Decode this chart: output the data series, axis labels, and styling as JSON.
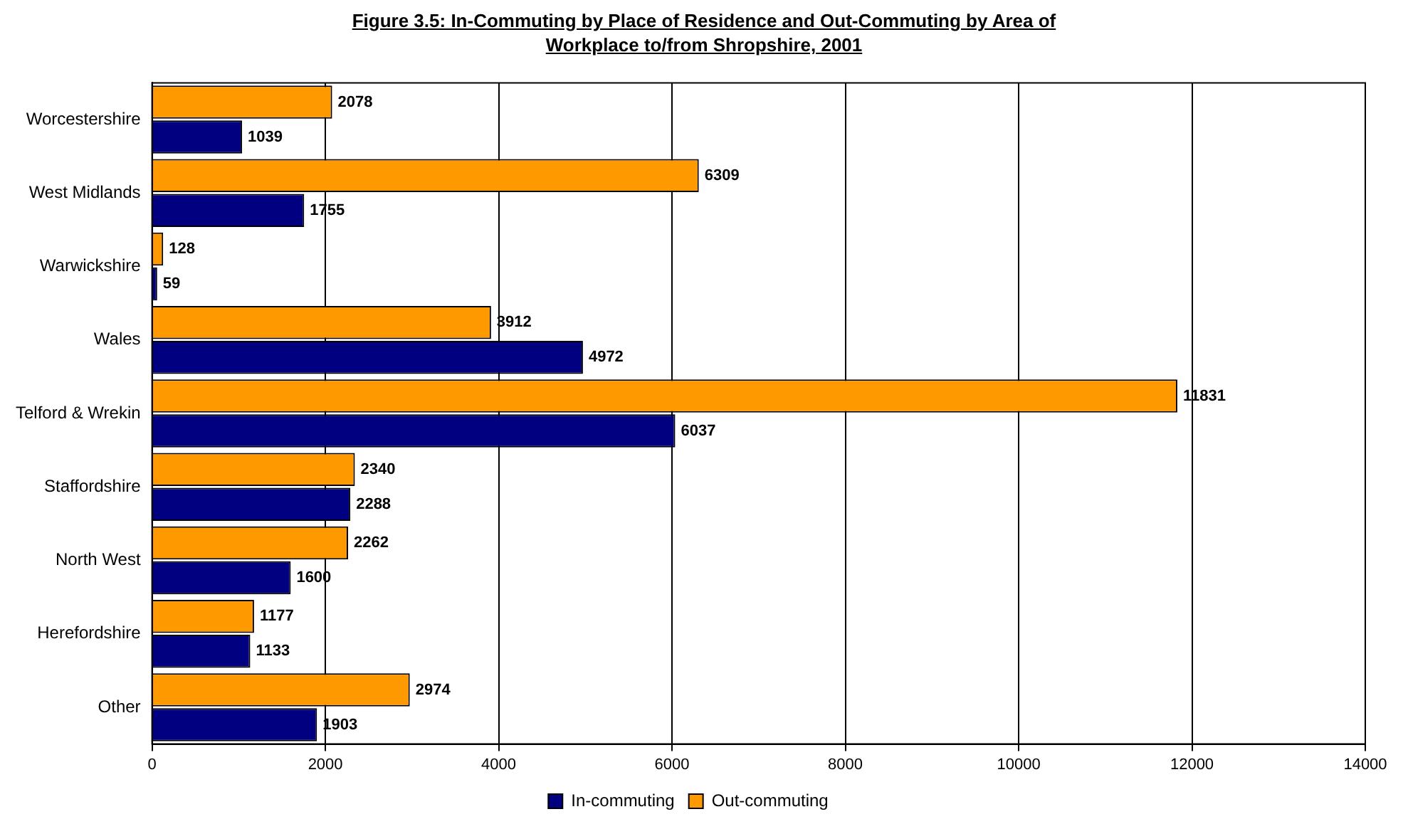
{
  "chart_data": {
    "type": "bar",
    "orientation": "horizontal",
    "title": "Figure 3.5: In-Commuting by Place of Residence and Out-Commuting by Area of Workplace to/from Shropshire, 2001",
    "categories": [
      "Worcestershire",
      "West Midlands",
      "Warwickshire",
      "Wales",
      "Telford & Wrekin",
      "Staffordshire",
      "North West",
      "Herefordshire",
      "Other"
    ],
    "series": [
      {
        "name": "In-commuting",
        "color": "#000080",
        "values": [
          1039,
          1755,
          59,
          4972,
          6037,
          2288,
          1600,
          1133,
          1903
        ]
      },
      {
        "name": "Out-commuting",
        "color": "#ff9900",
        "values": [
          2078,
          6309,
          128,
          3912,
          11831,
          2340,
          2262,
          1177,
          2974
        ]
      }
    ],
    "xlim": [
      0,
      14000
    ],
    "xticks": [
      0,
      2000,
      4000,
      6000,
      8000,
      10000,
      12000,
      14000
    ],
    "grid": "x",
    "legend": "bottom",
    "data_labels": true
  }
}
